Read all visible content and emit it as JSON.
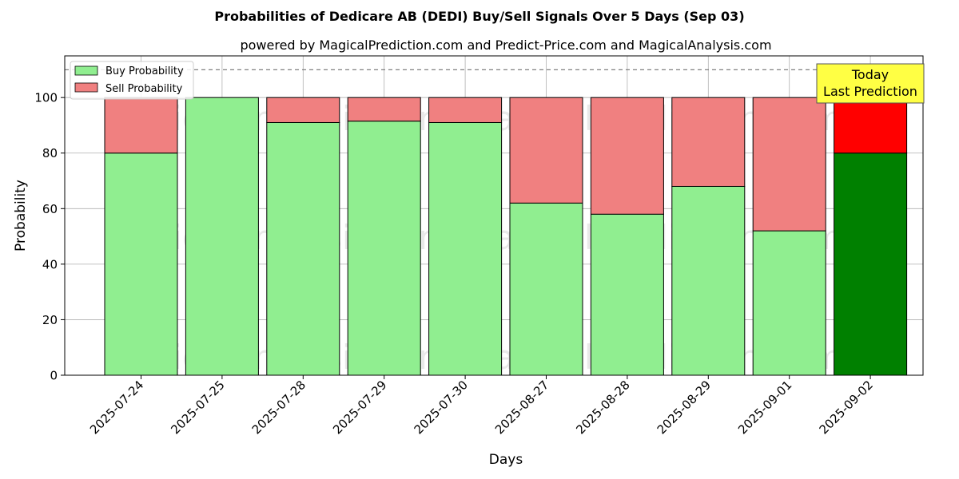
{
  "chart_data": {
    "type": "bar",
    "stacked": true,
    "title": "Probabilities of Dedicare AB (DEDI) Buy/Sell Signals Over 5 Days (Sep 03)",
    "subtitle": "powered by MagicalPrediction.com and Predict-Price.com and MagicalAnalysis.com",
    "xlabel": "Days",
    "ylabel": "Probability",
    "ylim": [
      0,
      115
    ],
    "yticks": [
      0,
      20,
      40,
      60,
      80,
      100
    ],
    "grid": true,
    "legend_position": "top-left",
    "categories": [
      "2025-07-24",
      "2025-07-25",
      "2025-07-28",
      "2025-07-29",
      "2025-07-30",
      "2025-08-27",
      "2025-08-28",
      "2025-08-29",
      "2025-09-01",
      "2025-09-02"
    ],
    "series": [
      {
        "name": "Buy Probability",
        "values": [
          80,
          100,
          91,
          91.5,
          91,
          62,
          58,
          68,
          52,
          80
        ],
        "color": "#90ee90",
        "highlight_color": "#008000"
      },
      {
        "name": "Sell Probability",
        "values": [
          20,
          0,
          9,
          8.5,
          9,
          38,
          42,
          32,
          48,
          20
        ],
        "color": "#f08080",
        "highlight_color": "#ff0000"
      }
    ],
    "highlight_index": 9,
    "reference_line": {
      "y": 110,
      "style": "dashed"
    },
    "annotation": {
      "lines": [
        "Today",
        "Last Prediction"
      ],
      "color": "#ffff44"
    },
    "watermarks": [
      "MagicalAnalysis.com",
      "MagicalPrediction.com"
    ]
  }
}
